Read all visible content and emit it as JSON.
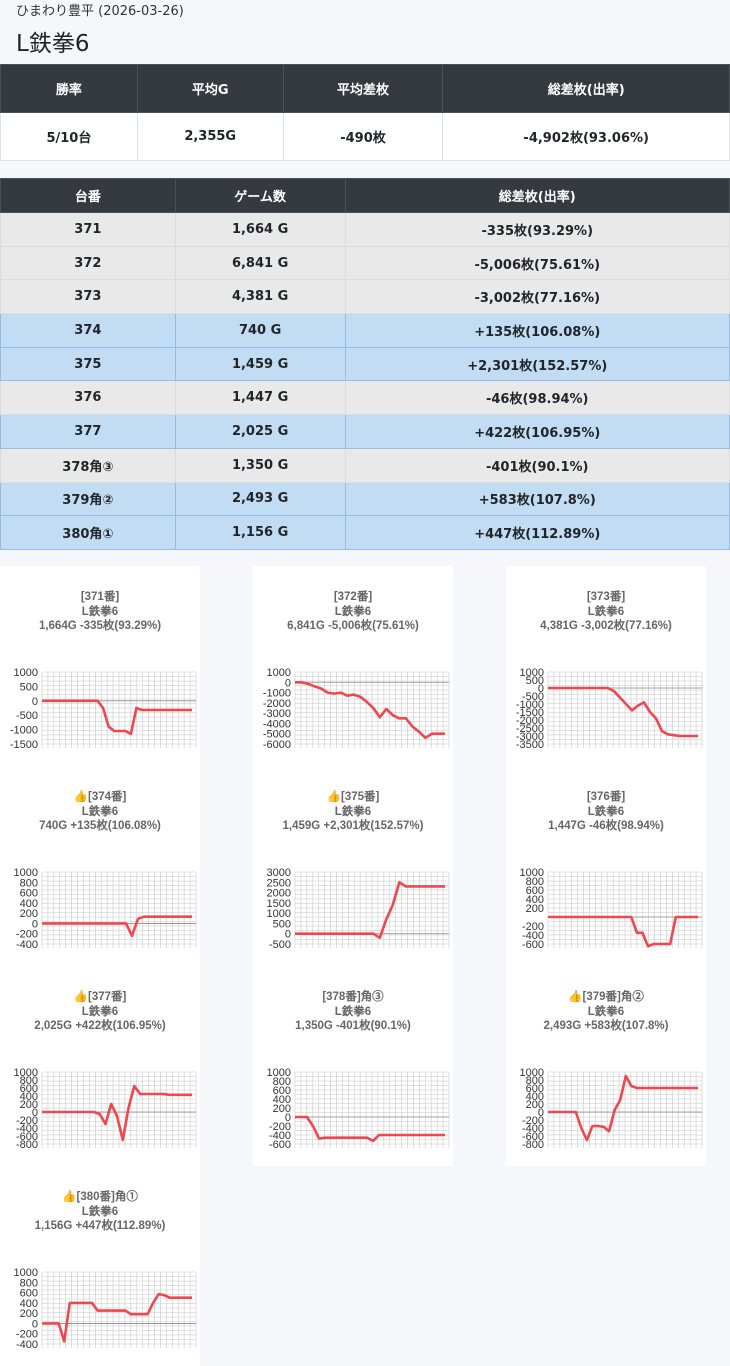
{
  "header": {
    "subtitle": "ひまわり豊平 (2026-03-26)",
    "title": "L鉄拳6"
  },
  "summary": {
    "headers": [
      "勝率",
      "平均G",
      "平均差枚",
      "総差枚(出率)"
    ],
    "values": [
      "5/10台",
      "2,355G",
      "-490枚",
      "-4,902枚(93.06%)"
    ]
  },
  "table": {
    "headers": [
      "台番",
      "ゲーム数",
      "総差枚(出率)"
    ],
    "rows": [
      {
        "no": "371",
        "games": "1,664 G",
        "diff": "-335枚(93.29%)",
        "plus": false
      },
      {
        "no": "372",
        "games": "6,841 G",
        "diff": "-5,006枚(75.61%)",
        "plus": false
      },
      {
        "no": "373",
        "games": "4,381 G",
        "diff": "-3,002枚(77.16%)",
        "plus": false
      },
      {
        "no": "374",
        "games": "740 G",
        "diff": "+135枚(106.08%)",
        "plus": true
      },
      {
        "no": "375",
        "games": "1,459 G",
        "diff": "+2,301枚(152.57%)",
        "plus": true
      },
      {
        "no": "376",
        "games": "1,447 G",
        "diff": "-46枚(98.94%)",
        "plus": false
      },
      {
        "no": "377",
        "games": "2,025 G",
        "diff": "+422枚(106.95%)",
        "plus": true
      },
      {
        "no": "378角③",
        "games": "1,350 G",
        "diff": "-401枚(90.1%)",
        "plus": false
      },
      {
        "no": "379角②",
        "games": "2,493 G",
        "diff": "+583枚(107.8%)",
        "plus": true
      },
      {
        "no": "380角①",
        "games": "1,156 G",
        "diff": "+447枚(112.89%)",
        "plus": true
      }
    ]
  },
  "colors": {
    "line": "#f0464e",
    "grid": "#c8c8c8",
    "header_bg": "#343a40",
    "plus_row": "#c2dcf3",
    "minus_row": "#e9e9e9"
  },
  "chart_data": [
    {
      "type": "line",
      "title": [
        "[371番]",
        "L鉄拳6",
        "1,664G -335枚(93.29%)"
      ],
      "liked": false,
      "ylim": [
        -1500,
        1000
      ],
      "yticks": [
        1000,
        500,
        0,
        -500,
        -1000,
        -1500
      ],
      "values": [
        0,
        0,
        0,
        0,
        0,
        0,
        0,
        0,
        0,
        0,
        0,
        -250,
        -900,
        -1050,
        -1050,
        -1050,
        -1150,
        -250,
        -320,
        -320,
        -320,
        -320,
        -320,
        -320,
        -320,
        -320,
        -320,
        -320
      ]
    },
    {
      "type": "line",
      "title": [
        "[372番]",
        "L鉄拳6",
        "6,841G -5,006枚(75.61%)"
      ],
      "liked": false,
      "ylim": [
        -6000,
        1000
      ],
      "yticks": [
        1000,
        0,
        -1000,
        -2000,
        -3000,
        -4000,
        -5000,
        -6000
      ],
      "values": [
        0,
        0,
        -150,
        -400,
        -600,
        -1000,
        -1100,
        -1000,
        -1300,
        -1200,
        -1400,
        -1900,
        -2500,
        -3400,
        -2600,
        -3200,
        -3500,
        -3500,
        -4300,
        -4800,
        -5400,
        -5000,
        -5000,
        -5000
      ]
    },
    {
      "type": "line",
      "title": [
        "[373番]",
        "L鉄拳6",
        "4,381G -3,002枚(77.16%)"
      ],
      "liked": false,
      "ylim": [
        -3500,
        1000
      ],
      "yticks": [
        1000,
        500,
        0,
        -500,
        -1000,
        -1500,
        -2000,
        -2500,
        -3000,
        -3500
      ],
      "values": [
        0,
        0,
        0,
        0,
        0,
        0,
        0,
        0,
        0,
        0,
        0,
        -200,
        -600,
        -1000,
        -1400,
        -1100,
        -900,
        -1500,
        -1900,
        -2700,
        -2900,
        -2950,
        -3000,
        -3000,
        -3000,
        -3000
      ]
    },
    {
      "type": "line",
      "title": [
        "[374番]",
        "L鉄拳6",
        "740G +135枚(106.08%)"
      ],
      "liked": true,
      "ylim": [
        -400,
        1000
      ],
      "yticks": [
        1000,
        800,
        600,
        400,
        200,
        0,
        -200,
        -400
      ],
      "values": [
        0,
        0,
        0,
        0,
        0,
        0,
        0,
        0,
        0,
        0,
        0,
        0,
        0,
        0,
        0,
        -240,
        90,
        130,
        130,
        130,
        130,
        130,
        130,
        130,
        130,
        130
      ]
    },
    {
      "type": "line",
      "title": [
        "[375番]",
        "L鉄拳6",
        "1,459G +2,301枚(152.57%)"
      ],
      "liked": true,
      "ylim": [
        -500,
        3000
      ],
      "yticks": [
        3000,
        2500,
        2000,
        1500,
        1000,
        500,
        0,
        -500
      ],
      "values": [
        0,
        0,
        0,
        0,
        0,
        0,
        0,
        0,
        0,
        0,
        0,
        0,
        0,
        -200,
        700,
        1400,
        2500,
        2300,
        2300,
        2300,
        2300,
        2300,
        2300,
        2300
      ]
    },
    {
      "type": "line",
      "title": [
        "[376番]",
        "L鉄拳6",
        "1,447G -46枚(98.94%)"
      ],
      "liked": false,
      "ylim": [
        -600,
        1000
      ],
      "yticks": [
        1000,
        800,
        600,
        400,
        200,
        -200,
        -400,
        -600
      ],
      "values": [
        0,
        0,
        0,
        0,
        0,
        0,
        0,
        0,
        0,
        0,
        0,
        0,
        0,
        0,
        0,
        0,
        -350,
        -350,
        -650,
        -600,
        -600,
        -600,
        -600,
        0,
        0,
        0,
        0,
        0
      ]
    },
    {
      "type": "line",
      "title": [
        "[377番]",
        "L鉄拳6",
        "2,025G +422枚(106.95%)"
      ],
      "liked": true,
      "ylim": [
        -800,
        1000
      ],
      "yticks": [
        1000,
        800,
        600,
        400,
        200,
        0,
        -200,
        -400,
        -600,
        -800
      ],
      "values": [
        0,
        0,
        0,
        0,
        0,
        0,
        0,
        0,
        0,
        0,
        -50,
        -300,
        200,
        -100,
        -700,
        100,
        650,
        450,
        450,
        450,
        450,
        450,
        430,
        430,
        430,
        430,
        430
      ]
    },
    {
      "type": "line",
      "title": [
        "[378番]角③",
        "L鉄拳6",
        "1,350G -401枚(90.1%)"
      ],
      "liked": false,
      "ylim": [
        -600,
        1000
      ],
      "yticks": [
        1000,
        800,
        600,
        400,
        200,
        0,
        -200,
        -400,
        -600
      ],
      "values": [
        0,
        0,
        0,
        -200,
        -480,
        -460,
        -460,
        -460,
        -460,
        -460,
        -460,
        -460,
        -460,
        -530,
        -400,
        -400,
        -400,
        -400,
        -400,
        -400,
        -400,
        -400,
        -400,
        -400,
        -400,
        -400
      ]
    },
    {
      "type": "line",
      "title": [
        "[379番]角②",
        "L鉄拳6",
        "2,493G +583枚(107.8%)"
      ],
      "liked": true,
      "ylim": [
        -800,
        1000
      ],
      "yticks": [
        1000,
        800,
        600,
        400,
        200,
        0,
        -200,
        -400,
        -600,
        -800
      ],
      "values": [
        0,
        0,
        0,
        0,
        0,
        0,
        -400,
        -700,
        -350,
        -350,
        -370,
        -480,
        50,
        300,
        900,
        650,
        600,
        600,
        600,
        600,
        600,
        600,
        600,
        600,
        600,
        600,
        600,
        600
      ]
    },
    {
      "type": "line",
      "title": [
        "[380番]角①",
        "L鉄拳6",
        "1,156G +447枚(112.89%)"
      ],
      "liked": true,
      "ylim": [
        -400,
        1000
      ],
      "yticks": [
        1000,
        800,
        600,
        400,
        200,
        0,
        -200,
        -400
      ],
      "values": [
        0,
        0,
        0,
        0,
        -350,
        400,
        400,
        400,
        400,
        400,
        250,
        250,
        250,
        250,
        250,
        250,
        180,
        180,
        180,
        180,
        400,
        570,
        550,
        500,
        500,
        500,
        500,
        500
      ]
    }
  ]
}
